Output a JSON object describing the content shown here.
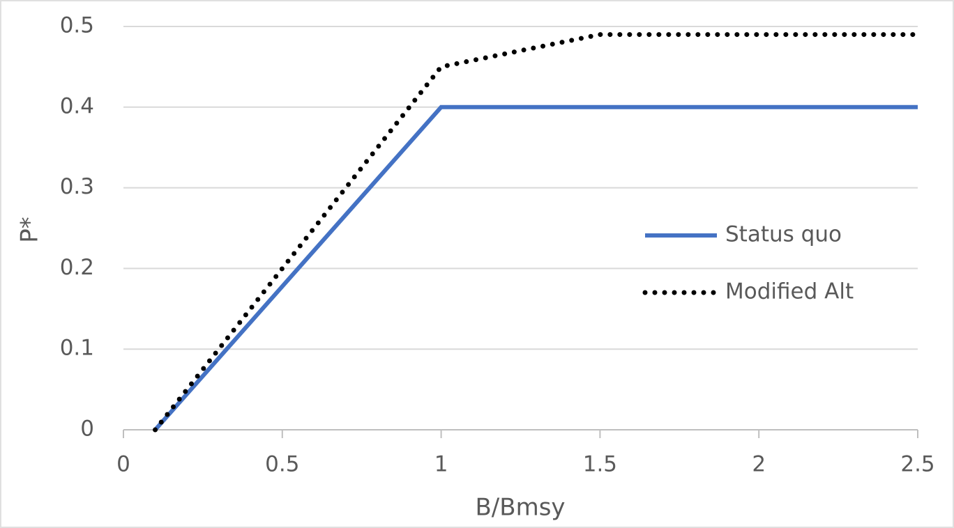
{
  "chart_data": {
    "type": "line",
    "xlabel": "B/Bmsy",
    "ylabel": "P*",
    "series": [
      {
        "name": "Status quo",
        "color": "#4472c4",
        "style": "solid",
        "x": [
          0.1,
          1,
          2.5
        ],
        "values": [
          0,
          0.4,
          0.4
        ]
      },
      {
        "name": "Modified Alt",
        "color": "#000000",
        "style": "dotted",
        "x": [
          0.1,
          1,
          1.5,
          2.5
        ],
        "values": [
          0,
          0.45,
          0.49,
          0.49
        ]
      }
    ],
    "xlim": [
      0,
      2.5
    ],
    "xticks": [
      0,
      0.5,
      1,
      1.5,
      2,
      2.5
    ],
    "ylim": [
      0,
      0.5
    ],
    "yticks": [
      0,
      0.1,
      0.2,
      0.3,
      0.4,
      0.5
    ],
    "grid": true,
    "legend": "right"
  }
}
